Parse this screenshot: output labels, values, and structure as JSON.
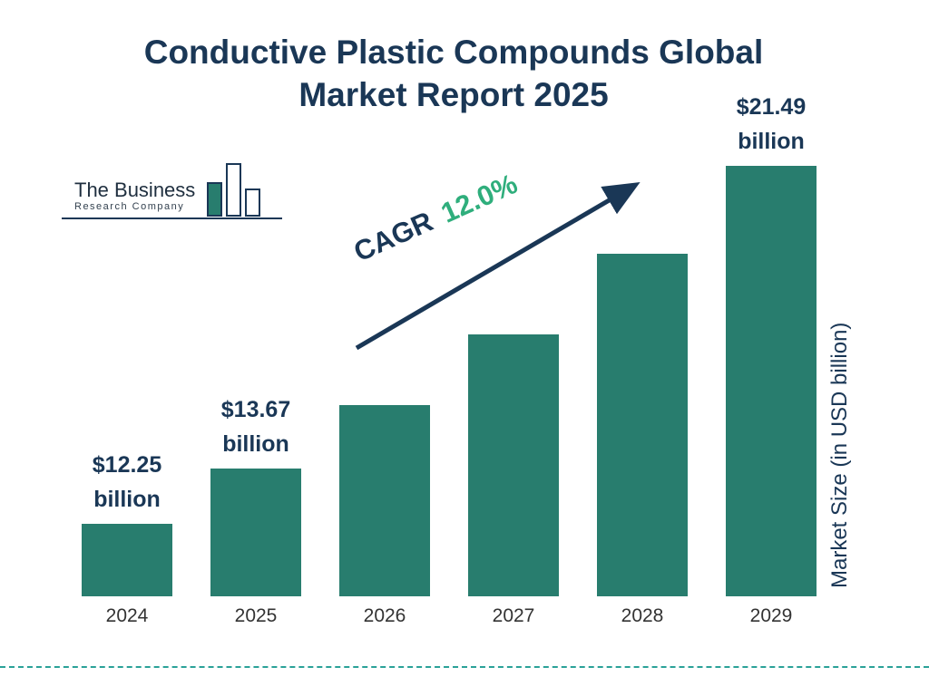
{
  "title": {
    "line1": "Conductive Plastic Compounds Global",
    "line2": "Market Report 2025"
  },
  "logo": {
    "line1": "The Business",
    "line2": "Research Company"
  },
  "cagr": {
    "prefix": "CAGR",
    "value": "12.0%"
  },
  "y_axis_label": "Market Size (in USD billion)",
  "colors": {
    "bar": "#287d6e",
    "navy": "#1a3756",
    "green": "#2fae7c",
    "dash": "#2aa198"
  },
  "chart_data": {
    "type": "bar",
    "title": "Conductive Plastic Compounds Global Market Report 2025",
    "categories": [
      "2024",
      "2025",
      "2026",
      "2027",
      "2028",
      "2029"
    ],
    "values": [
      12.25,
      13.67,
      15.31,
      17.15,
      19.21,
      21.49
    ],
    "value_labels": [
      {
        "index": 0,
        "amount": "$12.25",
        "unit": "billion"
      },
      {
        "index": 1,
        "amount": "$13.67",
        "unit": "billion"
      },
      {
        "index": 5,
        "amount": "$21.49",
        "unit": "billion"
      }
    ],
    "cagr": "12.0%",
    "xlabel": "",
    "ylabel": "Market Size (in USD billion)",
    "bar_color": "#287d6e",
    "legend": "none",
    "grid": false
  }
}
